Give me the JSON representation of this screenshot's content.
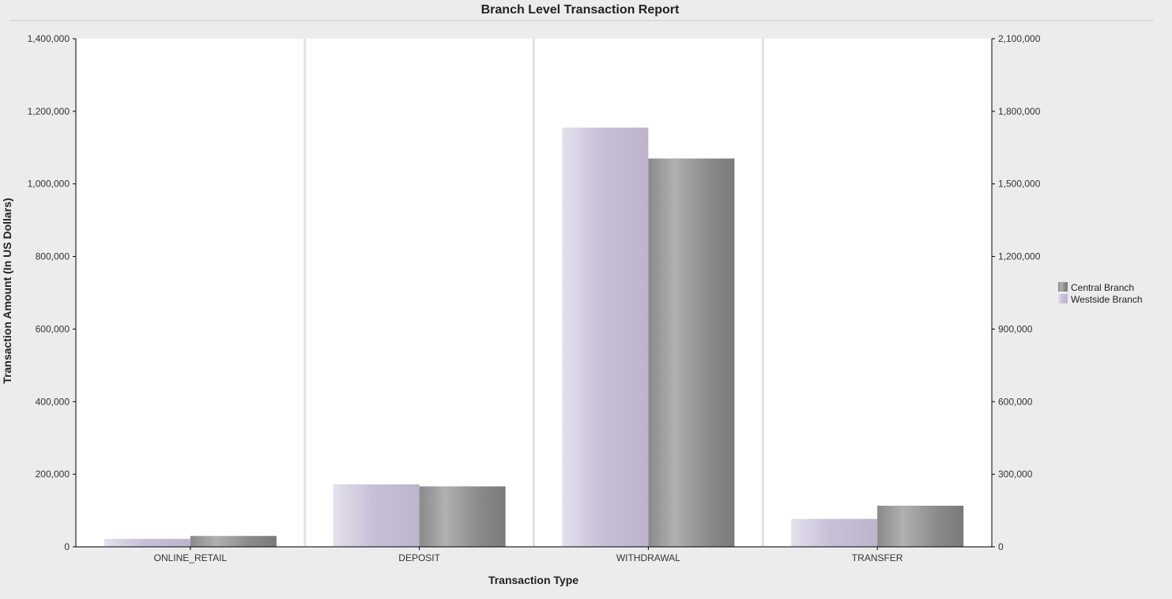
{
  "chart_data": {
    "type": "bar",
    "title": "Branch Level Transaction Report",
    "xlabel": "Transaction Type",
    "ylabel": "Transaction Amount  (In US Dollars)",
    "categories": [
      "ONLINE_RETAIL",
      "DEPOSIT",
      "WITHDRAWAL",
      "TRANSFER"
    ],
    "series": [
      {
        "name": "Westside Branch",
        "values": [
          22000,
          172000,
          1155000,
          77000
        ],
        "axis": "left",
        "color": "#c7bfd6"
      },
      {
        "name": "Central Branch",
        "values": [
          45000,
          250000,
          1605000,
          170000
        ],
        "axis": "right",
        "color": "#8c8c8c"
      }
    ],
    "ylim": [
      0,
      1400000
    ],
    "y2lim": [
      0,
      2100000
    ],
    "yticks": [
      "0",
      "200,000",
      "400,000",
      "600,000",
      "800,000",
      "1,000,000",
      "1,200,000",
      "1,400,000"
    ],
    "y2ticks": [
      "0",
      "300,000",
      "600,000",
      "900,000",
      "1,200,000",
      "1,500,000",
      "1,800,000",
      "2,100,000"
    ],
    "legend": [
      {
        "name": "Central Branch",
        "color": "#8c8c8c"
      },
      {
        "name": "Westside Branch",
        "color": "#c7bfd6"
      }
    ],
    "legend_position": "right",
    "grid": "vertical category separators"
  }
}
